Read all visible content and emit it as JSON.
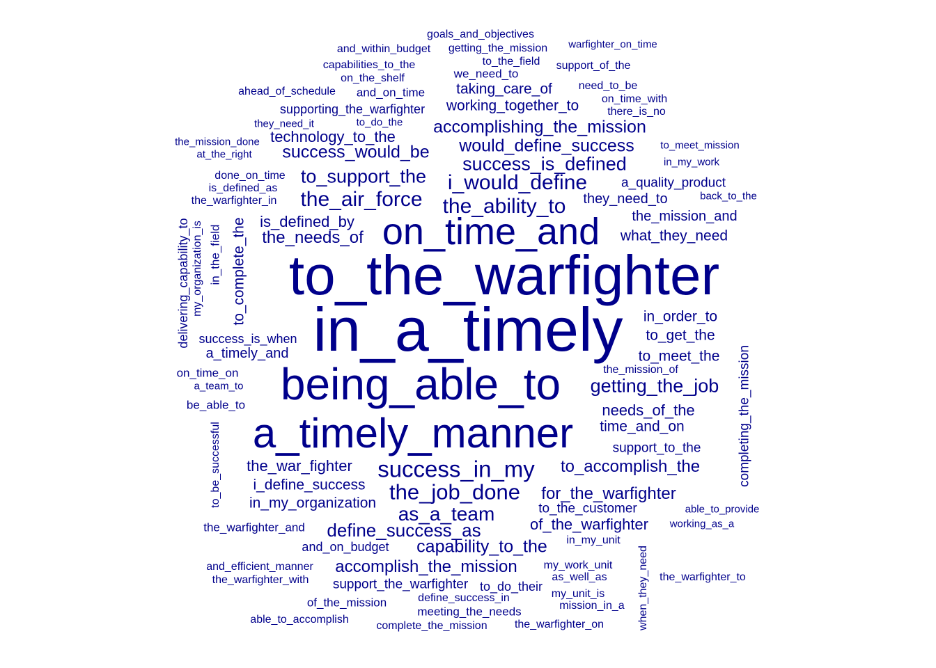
{
  "color": "#00008b",
  "words": [
    {
      "text": "to_the_warfighter",
      "weight": 80
    },
    {
      "text": "in_a_timely",
      "weight": 88
    },
    {
      "text": "being_able_to",
      "weight": 64
    },
    {
      "text": "a_timely_manner",
      "weight": 60
    },
    {
      "text": "on_time_and",
      "weight": 54
    },
    {
      "text": "success_in_my",
      "weight": 33
    },
    {
      "text": "the_job_done",
      "weight": 31
    },
    {
      "text": "the_air_force",
      "weight": 30
    },
    {
      "text": "i_would_define",
      "weight": 30
    },
    {
      "text": "the_ability_to",
      "weight": 30
    },
    {
      "text": "as_a_team",
      "weight": 28
    },
    {
      "text": "to_support_the",
      "weight": 27
    },
    {
      "text": "success_is_defined",
      "weight": 27
    },
    {
      "text": "getting_the_job",
      "weight": 27
    },
    {
      "text": "define_success_as",
      "weight": 26
    },
    {
      "text": "would_define_success",
      "weight": 25
    },
    {
      "text": "accomplishing_the_mission",
      "weight": 25
    },
    {
      "text": "capability_to_the",
      "weight": 25
    },
    {
      "text": "success_would_be",
      "weight": 25
    },
    {
      "text": "accomplish_the_mission",
      "weight": 24
    },
    {
      "text": "to_accomplish_the",
      "weight": 24
    },
    {
      "text": "for_the_warfighter",
      "weight": 24
    },
    {
      "text": "the_needs_of",
      "weight": 24
    },
    {
      "text": "is_defined_by",
      "weight": 22
    },
    {
      "text": "the_war_fighter",
      "weight": 22
    },
    {
      "text": "of_the_warfighter",
      "weight": 22
    },
    {
      "text": "technology_to_the",
      "weight": 22
    },
    {
      "text": "needs_of_the",
      "weight": 22
    },
    {
      "text": "taking_care_of",
      "weight": 21
    },
    {
      "text": "working_together_to",
      "weight": 21
    },
    {
      "text": "what_they_need",
      "weight": 21
    },
    {
      "text": "time_and_on",
      "weight": 21
    },
    {
      "text": "in_my_organization",
      "weight": 21
    },
    {
      "text": "i_define_success",
      "weight": 21
    },
    {
      "text": "to_meet_the",
      "weight": 21
    },
    {
      "text": "to_get_the",
      "weight": 21
    },
    {
      "text": "in_order_to",
      "weight": 21
    },
    {
      "text": "they_need_to",
      "weight": 20
    },
    {
      "text": "the_mission_and",
      "weight": 20
    },
    {
      "text": "a_timely_and",
      "weight": 20
    },
    {
      "text": "a_quality_product",
      "weight": 19
    },
    {
      "text": "support_to_the",
      "weight": 19
    },
    {
      "text": "to_the_customer",
      "weight": 19
    },
    {
      "text": "support_the_warfighter",
      "weight": 19
    },
    {
      "text": "supporting_the_warfighter",
      "weight": 18
    },
    {
      "text": "success_is_when",
      "weight": 18
    },
    {
      "text": "and_on_budget",
      "weight": 18
    },
    {
      "text": "to_do_their",
      "weight": 18
    },
    {
      "text": "meeting_the_needs",
      "weight": 17
    },
    {
      "text": "of_the_mission",
      "weight": 17
    },
    {
      "text": "on_time_on",
      "weight": 17
    },
    {
      "text": "be_able_to",
      "weight": 17
    },
    {
      "text": "the_warfighter_and",
      "weight": 17
    },
    {
      "text": "and_on_time",
      "weight": 17
    },
    {
      "text": "we_need_to",
      "weight": 17
    },
    {
      "text": "capabilities_to_the",
      "weight": 16
    },
    {
      "text": "on_the_shelf",
      "weight": 16
    },
    {
      "text": "the_warfighter_in",
      "weight": 16
    },
    {
      "text": "goals_and_objectives",
      "weight": 16
    },
    {
      "text": "and_within_budget",
      "weight": 16
    },
    {
      "text": "getting_the_mission",
      "weight": 16
    },
    {
      "text": "support_of_the",
      "weight": 16
    },
    {
      "text": "to_the_field",
      "weight": 16
    },
    {
      "text": "need_to_be",
      "weight": 16
    },
    {
      "text": "define_success_in",
      "weight": 16
    },
    {
      "text": "done_on_time",
      "weight": 16
    },
    {
      "text": "on_time_with",
      "weight": 16
    },
    {
      "text": "in_my_unit",
      "weight": 16
    },
    {
      "text": "complete_the_mission",
      "weight": 16
    },
    {
      "text": "my_work_unit",
      "weight": 16
    },
    {
      "text": "as_well_as",
      "weight": 16
    },
    {
      "text": "is_defined_as",
      "weight": 16
    },
    {
      "text": "the_mission_of",
      "weight": 16
    },
    {
      "text": "ahead_of_schedule",
      "weight": 16
    },
    {
      "text": "and_efficient_manner",
      "weight": 16
    },
    {
      "text": "the_warfighter_with",
      "weight": 16
    },
    {
      "text": "the_warfighter_on",
      "weight": 16
    },
    {
      "text": "able_to_accomplish",
      "weight": 16
    },
    {
      "text": "my_unit_is",
      "weight": 16
    },
    {
      "text": "mission_in_a",
      "weight": 16
    },
    {
      "text": "the_warfighter_to",
      "weight": 16
    },
    {
      "text": "there_is_no",
      "weight": 16
    },
    {
      "text": "to_do_the",
      "weight": 15
    },
    {
      "text": "they_need_it",
      "weight": 15
    },
    {
      "text": "the_mission_done",
      "weight": 15
    },
    {
      "text": "at_the_right",
      "weight": 15
    },
    {
      "text": "to_meet_mission",
      "weight": 15
    },
    {
      "text": "in_my_work",
      "weight": 15
    },
    {
      "text": "back_to_the",
      "weight": 15
    },
    {
      "text": "a_team_to",
      "weight": 15
    },
    {
      "text": "working_as_a",
      "weight": 15
    },
    {
      "text": "able_to_provide",
      "weight": 15
    },
    {
      "text": "warfighter_on_time",
      "weight": 15
    },
    {
      "text": "to_complete_the",
      "weight": 21
    },
    {
      "text": "completing_the_mission",
      "weight": 19
    },
    {
      "text": "delivering_capability_to",
      "weight": 18
    },
    {
      "text": "in_the_field",
      "weight": 17
    },
    {
      "text": "to_be_successful",
      "weight": 16
    },
    {
      "text": "my_organization_is",
      "weight": 16
    },
    {
      "text": "when_they_need",
      "weight": 16
    }
  ]
}
